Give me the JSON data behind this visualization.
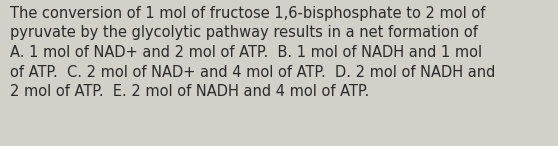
{
  "text": "The conversion of 1 mol of fructose 1,6-bisphosphate to 2 mol of pyruvate by the glycolytic pathway results in a net formation of A. 1 mol of NAD+ and 2 mol of ATP.  B. 1 mol of NADH and 1 mol of ATP.  C. 2 mol of NAD+ and 4 mol of ATP.  D. 2 mol of NADH and 2 mol of ATP.  E. 2 mol of NADH and 4 mol of ATP.",
  "lines": [
    "The conversion of 1 mol of fructose 1,6-bisphosphate to 2 mol of",
    "pyruvate by the glycolytic pathway results in a net formation of",
    "A. 1 mol of NAD+ and 2 mol of ATP.  B. 1 mol of NADH and 1 mol",
    "of ATP.  C. 2 mol of NAD+ and 4 mol of ATP.  D. 2 mol of NADH and",
    "2 mol of ATP.  E. 2 mol of NADH and 4 mol of ATP."
  ],
  "background_color": "#d3cfc9",
  "text_color": "#2b2b2b",
  "font_size": 10.5,
  "fig_width": 5.58,
  "fig_height": 1.46,
  "dpi": 100
}
